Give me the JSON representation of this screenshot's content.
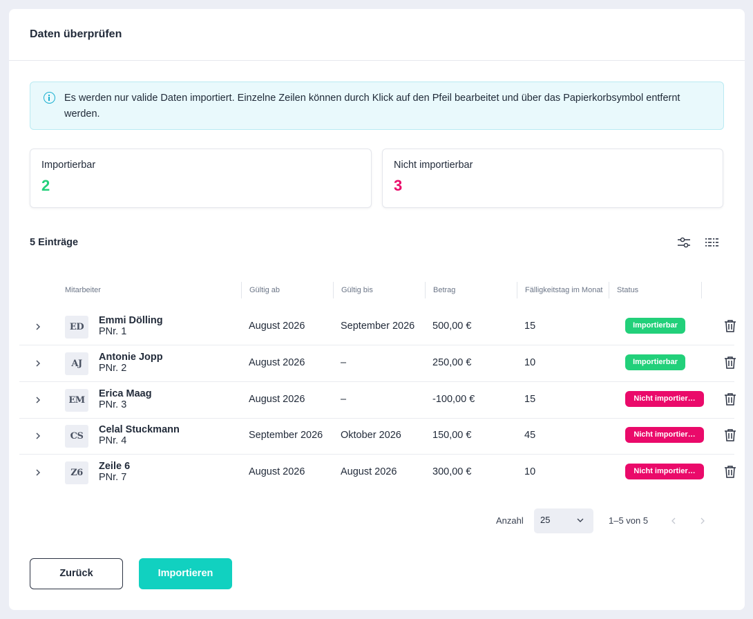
{
  "dialog": {
    "title": "Daten überprüfen",
    "info_text": "Es werden nur valide Daten importiert. Einzelne Zeilen können durch Klick auf den Pfeil bearbeitet und über das Papierkorbsymbol entfernt werden."
  },
  "stats": {
    "ok": {
      "label": "Importierbar",
      "value": "2",
      "color": "#22d07a"
    },
    "nok": {
      "label": "Nicht importierbar",
      "value": "3",
      "color": "#ea0a6a"
    }
  },
  "table": {
    "count_label": "5 Einträge",
    "columns": [
      "Mitarbeiter",
      "Gültig ab",
      "Gültig bis",
      "Betrag",
      "Fälligkeitstag im Monat",
      "Status"
    ],
    "rows": [
      {
        "initials": "ED",
        "name": "Emmi Dölling",
        "pnr": "PNr. 1",
        "valid_from": "August 2026",
        "valid_to": "September 2026",
        "amount": "500,00 €",
        "due_day": "15",
        "status": "Importierbar",
        "status_ok": true
      },
      {
        "initials": "AJ",
        "name": "Antonie Jopp",
        "pnr": "PNr. 2",
        "valid_from": "August 2026",
        "valid_to": "–",
        "amount": "250,00 €",
        "due_day": "10",
        "status": "Importierbar",
        "status_ok": true
      },
      {
        "initials": "EM",
        "name": "Erica Maag",
        "pnr": "PNr. 3",
        "valid_from": "August 2026",
        "valid_to": "–",
        "amount": "-100,00 €",
        "due_day": "15",
        "status": "Nicht importier…",
        "status_ok": false
      },
      {
        "initials": "CS",
        "name": "Celal Stuckmann",
        "pnr": "PNr. 4",
        "valid_from": "September 2026",
        "valid_to": "Oktober 2026",
        "amount": "150,00 €",
        "due_day": "45",
        "status": "Nicht importier…",
        "status_ok": false
      },
      {
        "initials": "Z6",
        "name": "Zeile 6",
        "pnr": "PNr. 7",
        "valid_from": "August 2026",
        "valid_to": "August 2026",
        "amount": "300,00 €",
        "due_day": "10",
        "status": "Nicht importier…",
        "status_ok": false
      }
    ]
  },
  "pagination": {
    "label": "Anzahl",
    "page_size": "25",
    "range": "1–5 von 5"
  },
  "actions": {
    "back": "Zurück",
    "import": "Importieren"
  },
  "icons": {
    "info": "info-icon",
    "filter": "filter-sliders-icon",
    "columns": "columns-icon",
    "expand": "chevron-right-icon",
    "delete": "trash-icon"
  },
  "colors": {
    "accent": "#11d1c0",
    "ok": "#22d07a",
    "error": "#ea0a6a",
    "info_bg": "#e9f9fc"
  }
}
